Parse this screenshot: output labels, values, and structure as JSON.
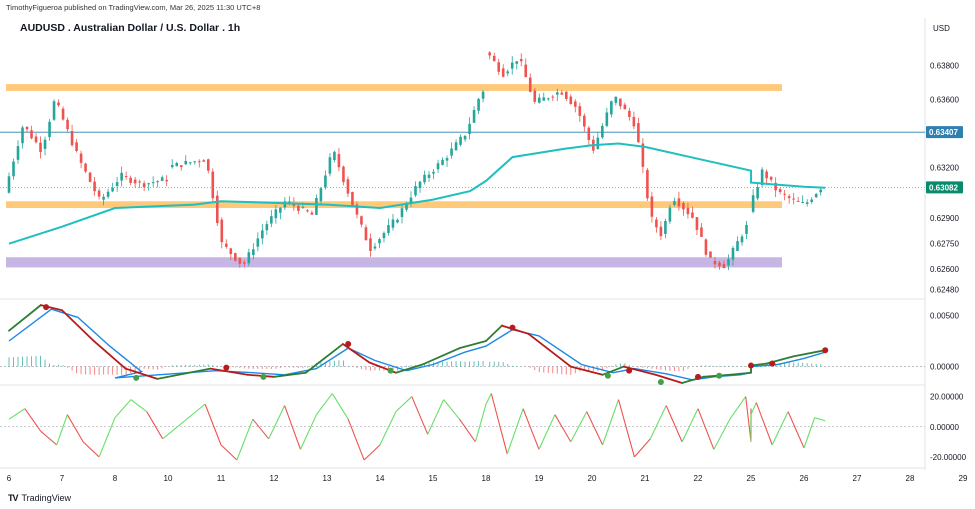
{
  "header": {
    "publisher_line": "TimothyFigueroa published on TradingView.com, Mar 26, 2025 11:30 UTC+8",
    "symbol_title": "AUDUSD . Australian Dollar / U.S. Dollar . 1h",
    "currency": "USD"
  },
  "footer": {
    "brand": "TradingView",
    "logo": "TV"
  },
  "colors": {
    "up_candle": "#26a69a",
    "down_candle": "#ef5350",
    "moving_average": "#1fbfbf",
    "resistance_zone": "#ffb74d",
    "support_zone": "#b39ddb",
    "price_line": "#2f7fb0",
    "fast_line": "#2e7d32",
    "slow_line": "#1e88e5",
    "bearish_dot": "#b71c1c",
    "bullish_dot": "#43a047",
    "osc_up": "#66e066",
    "osc_down": "#ef5350"
  },
  "chart_data": [
    {
      "type": "candlestick",
      "title": "AUDUSD . Australian Dollar / U.S. Dollar . 1h",
      "interval": "1h",
      "ylim": [
        0.6243,
        0.6395
      ],
      "y_ticks": [
        "0.63800",
        "0.63600",
        "0.63200",
        "0.62900",
        "0.62750",
        "0.62600",
        "0.62480"
      ],
      "y_tick_values": [
        0.638,
        0.636,
        0.632,
        0.629,
        0.6275,
        0.626,
        0.6248
      ],
      "x_tick_labels": [
        "6",
        "7",
        "8",
        "10",
        "11",
        "12",
        "13",
        "14",
        "15",
        "18",
        "19",
        "20",
        "21",
        "22",
        "25",
        "26",
        "27",
        "28",
        "29"
      ],
      "price_labels": [
        {
          "value": 0.63407,
          "text": "0.63407",
          "style": "line"
        },
        {
          "value": 0.63082,
          "text": "0.63082",
          "style": "last"
        }
      ],
      "zones": [
        {
          "name": "resistance",
          "from": 0.6365,
          "to": 0.6369
        },
        {
          "name": "mid-zone",
          "from": 0.6296,
          "to": 0.63
        },
        {
          "name": "support",
          "from": 0.6261,
          "to": 0.6267
        }
      ],
      "price_path": [
        {
          "day": 6,
          "price": 0.6305
        },
        {
          "day": 6.35,
          "price": 0.6345
        },
        {
          "day": 6.7,
          "price": 0.633
        },
        {
          "day": 6.95,
          "price": 0.636
        },
        {
          "day": 7.4,
          "price": 0.6325
        },
        {
          "day": 7.8,
          "price": 0.63
        },
        {
          "day": 8.2,
          "price": 0.6315
        },
        {
          "day": 8.6,
          "price": 0.631
        },
        {
          "day": 10.8,
          "price": 0.6325
        },
        {
          "day": 11.1,
          "price": 0.6275
        },
        {
          "day": 11.5,
          "price": 0.6262
        },
        {
          "day": 11.9,
          "price": 0.6285
        },
        {
          "day": 12.3,
          "price": 0.63
        },
        {
          "day": 12.8,
          "price": 0.6292
        },
        {
          "day": 13.2,
          "price": 0.633
        },
        {
          "day": 13.6,
          "price": 0.6295
        },
        {
          "day": 13.9,
          "price": 0.6272
        },
        {
          "day": 14.4,
          "price": 0.629
        },
        {
          "day": 14.8,
          "price": 0.631
        },
        {
          "day": 15.3,
          "price": 0.6325
        },
        {
          "day": 15.7,
          "price": 0.634
        },
        {
          "day": 16.0,
          "price": 0.6365
        },
        {
          "day": 18.1,
          "price": 0.6388
        },
        {
          "day": 18.4,
          "price": 0.6375
        },
        {
          "day": 18.7,
          "price": 0.6385
        },
        {
          "day": 19.0,
          "price": 0.6358
        },
        {
          "day": 19.5,
          "price": 0.6365
        },
        {
          "day": 19.8,
          "price": 0.6355
        },
        {
          "day": 20.1,
          "price": 0.633
        },
        {
          "day": 20.5,
          "price": 0.6362
        },
        {
          "day": 20.9,
          "price": 0.6345
        },
        {
          "day": 21.2,
          "price": 0.629
        },
        {
          "day": 21.4,
          "price": 0.628
        },
        {
          "day": 21.6,
          "price": 0.6303
        },
        {
          "day": 22.0,
          "price": 0.629
        },
        {
          "day": 22.3,
          "price": 0.6265
        },
        {
          "day": 22.6,
          "price": 0.6262
        },
        {
          "day": 22.9,
          "price": 0.628
        },
        {
          "day": 23.3,
          "price": 0.63
        },
        {
          "day": 23.7,
          "price": 0.6272
        },
        {
          "day": 24.1,
          "price": 0.6285
        },
        {
          "day": 24.6,
          "price": 0.629
        },
        {
          "day": 25.0,
          "price": 0.629
        },
        {
          "day": 25.3,
          "price": 0.6318
        },
        {
          "day": 25.6,
          "price": 0.6305
        },
        {
          "day": 25.9,
          "price": 0.63
        },
        {
          "day": 26.1,
          "price": 0.6298
        },
        {
          "day": 26.4,
          "price": 0.63082
        }
      ],
      "moving_average": [
        {
          "day": 6,
          "price": 0.6275
        },
        {
          "day": 7,
          "price": 0.6285
        },
        {
          "day": 8,
          "price": 0.6296
        },
        {
          "day": 10.5,
          "price": 0.6298
        },
        {
          "day": 11,
          "price": 0.63
        },
        {
          "day": 12,
          "price": 0.6299
        },
        {
          "day": 13,
          "price": 0.6298
        },
        {
          "day": 14,
          "price": 0.6296
        },
        {
          "day": 15,
          "price": 0.6301
        },
        {
          "day": 15.7,
          "price": 0.6306
        },
        {
          "day": 16,
          "price": 0.6312
        },
        {
          "day": 18.5,
          "price": 0.6326
        },
        {
          "day": 19.5,
          "price": 0.6331
        },
        {
          "day": 20,
          "price": 0.6333
        },
        {
          "day": 20.5,
          "price": 0.6334
        },
        {
          "day": 21,
          "price": 0.6332
        },
        {
          "day": 22,
          "price": 0.6325
        },
        {
          "day": 23,
          "price": 0.6318
        },
        {
          "day": 24,
          "price": 0.6314
        },
        {
          "day": 25,
          "price": 0.6311
        },
        {
          "day": 26,
          "price": 0.63085
        },
        {
          "day": 26.4,
          "price": 0.6308
        }
      ]
    },
    {
      "type": "line",
      "name": "histogram-oscillator",
      "ylim": [
        -0.0017,
        0.0065
      ],
      "y_ticks": [
        "0.00500",
        "0.00000"
      ],
      "y_tick_values": [
        0.005,
        0.0
      ],
      "fast": [
        {
          "day": 6,
          "value": 0.0035
        },
        {
          "day": 6.6,
          "value": 0.006
        },
        {
          "day": 7.0,
          "value": 0.0055
        },
        {
          "day": 7.6,
          "value": 0.0025
        },
        {
          "day": 8.2,
          "value": -0.0002
        },
        {
          "day": 8.8,
          "value": -0.0012
        },
        {
          "day": 10.8,
          "value": -0.0002
        },
        {
          "day": 11.5,
          "value": -0.0008
        },
        {
          "day": 12,
          "value": -0.001
        },
        {
          "day": 12.6,
          "value": -0.0006
        },
        {
          "day": 13.3,
          "value": 0.0022
        },
        {
          "day": 13.8,
          "value": 0.0004
        },
        {
          "day": 14.3,
          "value": -0.0006
        },
        {
          "day": 14.8,
          "value": 0.0002
        },
        {
          "day": 15.5,
          "value": 0.0018
        },
        {
          "day": 16.0,
          "value": 0.0025
        },
        {
          "day": 18.3,
          "value": 0.004
        },
        {
          "day": 18.8,
          "value": 0.0032
        },
        {
          "day": 19.6,
          "value": 0.0
        },
        {
          "day": 20.2,
          "value": -0.0008
        },
        {
          "day": 20.6,
          "value": 0.0
        },
        {
          "day": 21.2,
          "value": -0.0008
        },
        {
          "day": 21.7,
          "value": -0.0016
        },
        {
          "day": 22.1,
          "value": -0.001
        },
        {
          "day": 22.6,
          "value": -0.0008
        },
        {
          "day": 23.2,
          "value": -0.0006
        },
        {
          "day": 24,
          "value": -0.0004
        },
        {
          "day": 24.6,
          "value": 0.0001
        },
        {
          "day": 25.3,
          "value": 0.0003
        },
        {
          "day": 25.8,
          "value": 0.001
        },
        {
          "day": 26.4,
          "value": 0.0016
        }
      ],
      "slow": [
        {
          "day": 6,
          "value": 0.0025
        },
        {
          "day": 6.8,
          "value": 0.0056
        },
        {
          "day": 7.3,
          "value": 0.0048
        },
        {
          "day": 7.9,
          "value": 0.002
        },
        {
          "day": 8.5,
          "value": -0.0005
        },
        {
          "day": 9,
          "value": -0.0011
        },
        {
          "day": 10.9,
          "value": -0.0004
        },
        {
          "day": 11.6,
          "value": -0.0006
        },
        {
          "day": 12.2,
          "value": -0.0008
        },
        {
          "day": 12.8,
          "value": -0.0002
        },
        {
          "day": 13.4,
          "value": 0.0018
        },
        {
          "day": 13.9,
          "value": 0.0006
        },
        {
          "day": 14.5,
          "value": -0.0004
        },
        {
          "day": 15,
          "value": 0.0002
        },
        {
          "day": 15.6,
          "value": 0.0014
        },
        {
          "day": 16.1,
          "value": 0.002
        },
        {
          "day": 18.5,
          "value": 0.0036
        },
        {
          "day": 19,
          "value": 0.003
        },
        {
          "day": 19.8,
          "value": 0.0002
        },
        {
          "day": 20.4,
          "value": -0.0006
        },
        {
          "day": 20.8,
          "value": -0.0002
        },
        {
          "day": 21.4,
          "value": -0.0007
        },
        {
          "day": 21.9,
          "value": -0.0013
        },
        {
          "day": 22.3,
          "value": -0.001
        },
        {
          "day": 22.8,
          "value": -0.0008
        },
        {
          "day": 23.4,
          "value": -0.0006
        },
        {
          "day": 24.2,
          "value": -0.0004
        },
        {
          "day": 24.8,
          "value": 0.0
        },
        {
          "day": 25.5,
          "value": 0.0002
        },
        {
          "day": 26,
          "value": 0.0008
        },
        {
          "day": 26.4,
          "value": 0.0014
        }
      ],
      "cross_dots": [
        {
          "day": 6.7,
          "value": 0.0058,
          "kind": "bearish"
        },
        {
          "day": 8.4,
          "value": -0.0011,
          "kind": "bullish"
        },
        {
          "day": 11.1,
          "value": -0.0001,
          "kind": "bearish"
        },
        {
          "day": 11.8,
          "value": -0.001,
          "kind": "bullish"
        },
        {
          "day": 13.4,
          "value": 0.0022,
          "kind": "bearish"
        },
        {
          "day": 14.2,
          "value": -0.0004,
          "kind": "bullish"
        },
        {
          "day": 18.5,
          "value": 0.0038,
          "kind": "bearish"
        },
        {
          "day": 20.3,
          "value": -0.0009,
          "kind": "bullish"
        },
        {
          "day": 20.7,
          "value": -0.0004,
          "kind": "bearish"
        },
        {
          "day": 21.3,
          "value": -0.0015,
          "kind": "bullish"
        },
        {
          "day": 22.0,
          "value": -0.001,
          "kind": "bearish"
        },
        {
          "day": 22.4,
          "value": -0.0009,
          "kind": "bullish"
        },
        {
          "day": 24.5,
          "value": 0.0001,
          "kind": "bearish"
        },
        {
          "day": 25.4,
          "value": 0.0003,
          "kind": "bearish"
        },
        {
          "day": 26.4,
          "value": 0.0016,
          "kind": "bearish"
        }
      ]
    },
    {
      "type": "line",
      "name": "momentum-oscillator",
      "ylim": [
        -26,
        27
      ],
      "y_ticks": [
        "20.00000",
        "0.00000",
        "-20.00000"
      ],
      "y_tick_values": [
        20,
        0,
        -20
      ],
      "values": [
        {
          "day": 6,
          "value": 5
        },
        {
          "day": 6.3,
          "value": 12
        },
        {
          "day": 6.6,
          "value": -3
        },
        {
          "day": 6.9,
          "value": -12
        },
        {
          "day": 7.1,
          "value": 8
        },
        {
          "day": 7.4,
          "value": -10
        },
        {
          "day": 7.7,
          "value": -20
        },
        {
          "day": 8.0,
          "value": 6
        },
        {
          "day": 8.3,
          "value": 18
        },
        {
          "day": 8.6,
          "value": 10
        },
        {
          "day": 8.9,
          "value": -8
        },
        {
          "day": 10.7,
          "value": 15
        },
        {
          "day": 11.0,
          "value": -12
        },
        {
          "day": 11.3,
          "value": -22
        },
        {
          "day": 11.6,
          "value": 5
        },
        {
          "day": 11.9,
          "value": -8
        },
        {
          "day": 12.2,
          "value": 14
        },
        {
          "day": 12.5,
          "value": -15
        },
        {
          "day": 12.8,
          "value": 8
        },
        {
          "day": 13.1,
          "value": 22
        },
        {
          "day": 13.4,
          "value": 5
        },
        {
          "day": 13.7,
          "value": -22
        },
        {
          "day": 14.0,
          "value": -12
        },
        {
          "day": 14.3,
          "value": 10
        },
        {
          "day": 14.6,
          "value": 20
        },
        {
          "day": 14.9,
          "value": -5
        },
        {
          "day": 15.2,
          "value": 18
        },
        {
          "day": 15.5,
          "value": 5
        },
        {
          "day": 15.8,
          "value": -10
        },
        {
          "day": 16.1,
          "value": 15
        },
        {
          "day": 18.1,
          "value": 22
        },
        {
          "day": 18.4,
          "value": -18
        },
        {
          "day": 18.7,
          "value": 12
        },
        {
          "day": 19.0,
          "value": -15
        },
        {
          "day": 19.3,
          "value": 8
        },
        {
          "day": 19.6,
          "value": -10
        },
        {
          "day": 19.9,
          "value": 10
        },
        {
          "day": 20.2,
          "value": -12
        },
        {
          "day": 20.5,
          "value": 18
        },
        {
          "day": 20.8,
          "value": -20
        },
        {
          "day": 21.1,
          "value": -8
        },
        {
          "day": 21.4,
          "value": 14
        },
        {
          "day": 21.7,
          "value": -10
        },
        {
          "day": 22.0,
          "value": 12
        },
        {
          "day": 22.3,
          "value": -15
        },
        {
          "day": 22.6,
          "value": 5
        },
        {
          "day": 22.9,
          "value": 20
        },
        {
          "day": 23.2,
          "value": -10
        },
        {
          "day": 23.5,
          "value": 8
        },
        {
          "day": 23.8,
          "value": -5
        },
        {
          "day": 24.2,
          "value": 12
        },
        {
          "day": 24.5,
          "value": -8
        },
        {
          "day": 24.8,
          "value": 8
        },
        {
          "day": 25.1,
          "value": 16
        },
        {
          "day": 25.4,
          "value": -12
        },
        {
          "day": 25.7,
          "value": 10
        },
        {
          "day": 26.0,
          "value": -14
        },
        {
          "day": 26.2,
          "value": 6
        },
        {
          "day": 26.4,
          "value": 4
        }
      ]
    }
  ]
}
